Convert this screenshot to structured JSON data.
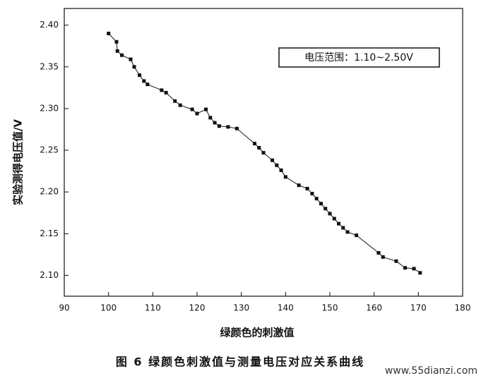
{
  "chart_data": {
    "type": "line",
    "x_label": "绿颜色的刺激值",
    "y_label": "实验测得电压值/V",
    "annotation": "电压范围：1.10~2.50V",
    "caption": "图 6 绿颜色刺激值与测量电压对应关系曲线",
    "watermark": "www.55dianzi.com",
    "xlim": [
      90,
      180
    ],
    "xticks": [
      90,
      100,
      110,
      120,
      130,
      140,
      150,
      160,
      170,
      180
    ],
    "ylim": [
      2.075,
      2.42
    ],
    "yticks": [
      {
        "value": 2.1,
        "label": "2.10"
      },
      2.15,
      {
        "value": 2.2,
        "label": "2.20"
      },
      2.25,
      {
        "value": 2.3,
        "label": "2.30"
      },
      2.35,
      {
        "value": 2.4,
        "label": "2.40"
      }
    ],
    "color": "#111111",
    "x": [
      100,
      101.8,
      102,
      103,
      105,
      105.8,
      107,
      108,
      108.8,
      112,
      113,
      115,
      116.2,
      118.9,
      120,
      122,
      123,
      124,
      125,
      127,
      129,
      133,
      134,
      135,
      137,
      138,
      139,
      140,
      143,
      144.9,
      146,
      147,
      148,
      149,
      150,
      151,
      152,
      153,
      154,
      156,
      161,
      162,
      165,
      167,
      169,
      170.4
    ],
    "values": [
      2.39,
      2.38,
      2.369,
      2.364,
      2.359,
      2.35,
      2.34,
      2.333,
      2.329,
      2.322,
      2.319,
      2.309,
      2.304,
      2.299,
      2.294,
      2.299,
      2.289,
      2.283,
      2.279,
      2.278,
      2.276,
      2.258,
      2.253,
      2.247,
      2.238,
      2.232,
      2.226,
      2.218,
      2.208,
      2.204,
      2.198,
      2.192,
      2.186,
      2.18,
      2.174,
      2.168,
      2.162,
      2.157,
      2.152,
      2.148,
      2.127,
      2.122,
      2.117,
      2.109,
      2.108,
      2.103
    ]
  }
}
